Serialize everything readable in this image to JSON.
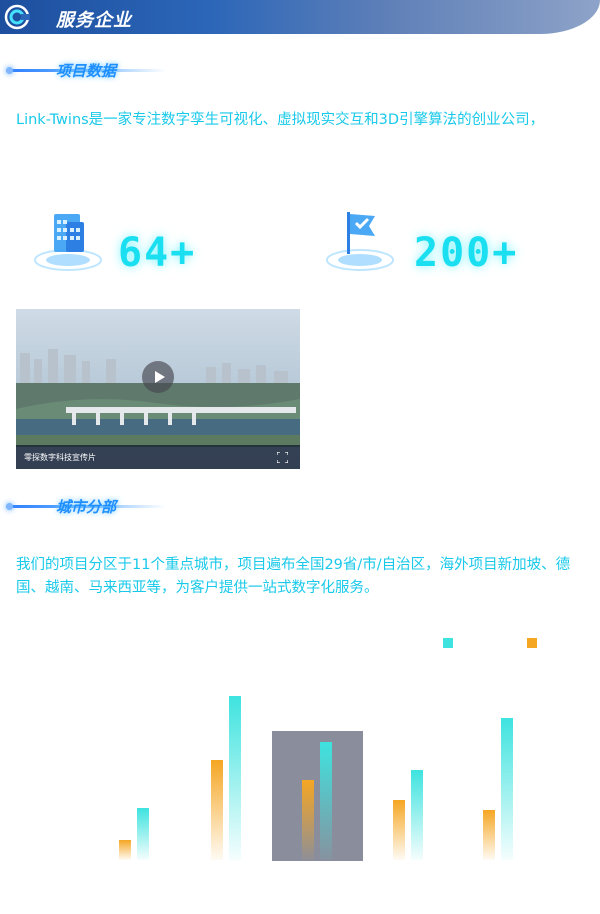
{
  "header": {
    "title": "服务企业"
  },
  "section_project": {
    "title": "项目数据"
  },
  "intro": {
    "text": "Link-Twins是一家专注数字孪生可视化、虚拟现实交互和3D引擎算法的创业公司，"
  },
  "stats": [
    {
      "icon": "building-icon",
      "value": "64+"
    },
    {
      "icon": "flag-icon",
      "value": "200+"
    }
  ],
  "video": {
    "caption": "零探数字科技宣传片"
  },
  "section_region": {
    "title": "城市分部"
  },
  "region": {
    "text": "我们的项目分区于11个重点城市，项目遍布全国29省/市/自治区，海外项目新加坡、德国、越南、马来西亚等，为客户提供一站式数字化服务。"
  },
  "colors": {
    "accent": "#19c9ea",
    "cyan_series": "#3ee3df",
    "orange_series": "#f5a623",
    "highlight": "#8a8e9c"
  },
  "chart_data": {
    "type": "bar",
    "categories": [
      "",
      "",
      "",
      "",
      ""
    ],
    "series": [
      {
        "color": "#f5a623",
        "values": [
          1,
          5,
          4,
          3,
          2.5
        ]
      },
      {
        "color": "#3ee3df",
        "values": [
          2.6,
          8.2,
          5.9,
          4.5,
          7.1
        ]
      }
    ],
    "highlight_index": 2,
    "legend_position": "top-right",
    "grid": false
  }
}
